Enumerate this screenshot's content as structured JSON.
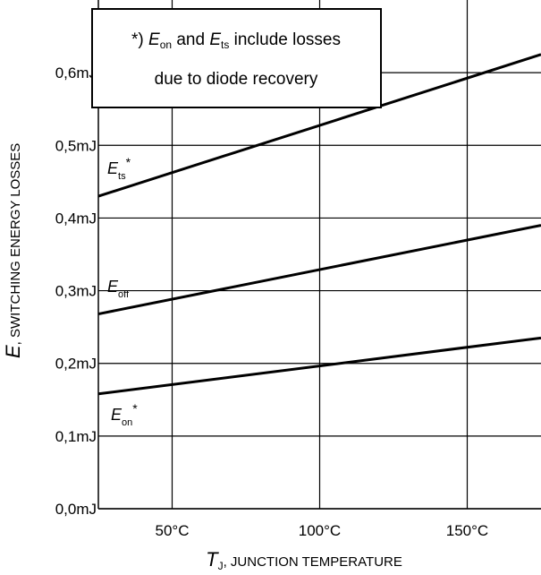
{
  "chart_data": {
    "type": "line",
    "xlabel": {
      "main": "T",
      "sub": "J",
      "rest": ", JUNCTION TEMPERATURE"
    },
    "ylabel": {
      "main": "E",
      "rest": ", SWITCHING ENERGY LOSSES"
    },
    "xlim": [
      25,
      175
    ],
    "ylim": [
      0.0,
      0.7
    ],
    "x_ticks": [
      50,
      100,
      150
    ],
    "x_tick_labels": [
      "50°C",
      "100°C",
      "150°C"
    ],
    "y_ticks": [
      0.0,
      0.1,
      0.2,
      0.3,
      0.4,
      0.5,
      0.6
    ],
    "y_tick_labels": [
      "0,0mJ",
      "0,1mJ",
      "0,2mJ",
      "0,3mJ",
      "0,4mJ",
      "0,5mJ",
      "0,6mJ"
    ],
    "grid": true,
    "series": [
      {
        "name": "E_ts*",
        "label_main": "E",
        "label_sub": "ts",
        "label_suffix": "*",
        "x": [
          25,
          175
        ],
        "y": [
          0.43,
          0.625
        ]
      },
      {
        "name": "E_off",
        "label_main": "E",
        "label_sub": "off",
        "label_suffix": "",
        "x": [
          25,
          175
        ],
        "y": [
          0.268,
          0.39
        ]
      },
      {
        "name": "E_on*",
        "label_main": "E",
        "label_sub": "on",
        "label_suffix": "*",
        "x": [
          25,
          175
        ],
        "y": [
          0.158,
          0.235
        ]
      }
    ],
    "annotation": {
      "line1_prefix": "*) ",
      "line1_e1": "E",
      "line1_e1_sub": "on",
      "line1_mid": " and ",
      "line1_e2": "E",
      "line1_e2_sub": "ts",
      "line1_suffix": " include losses",
      "line2": "due to diode recovery"
    },
    "colors": {
      "line": "#000000",
      "grid": "#000000",
      "background": "#ffffff"
    }
  }
}
